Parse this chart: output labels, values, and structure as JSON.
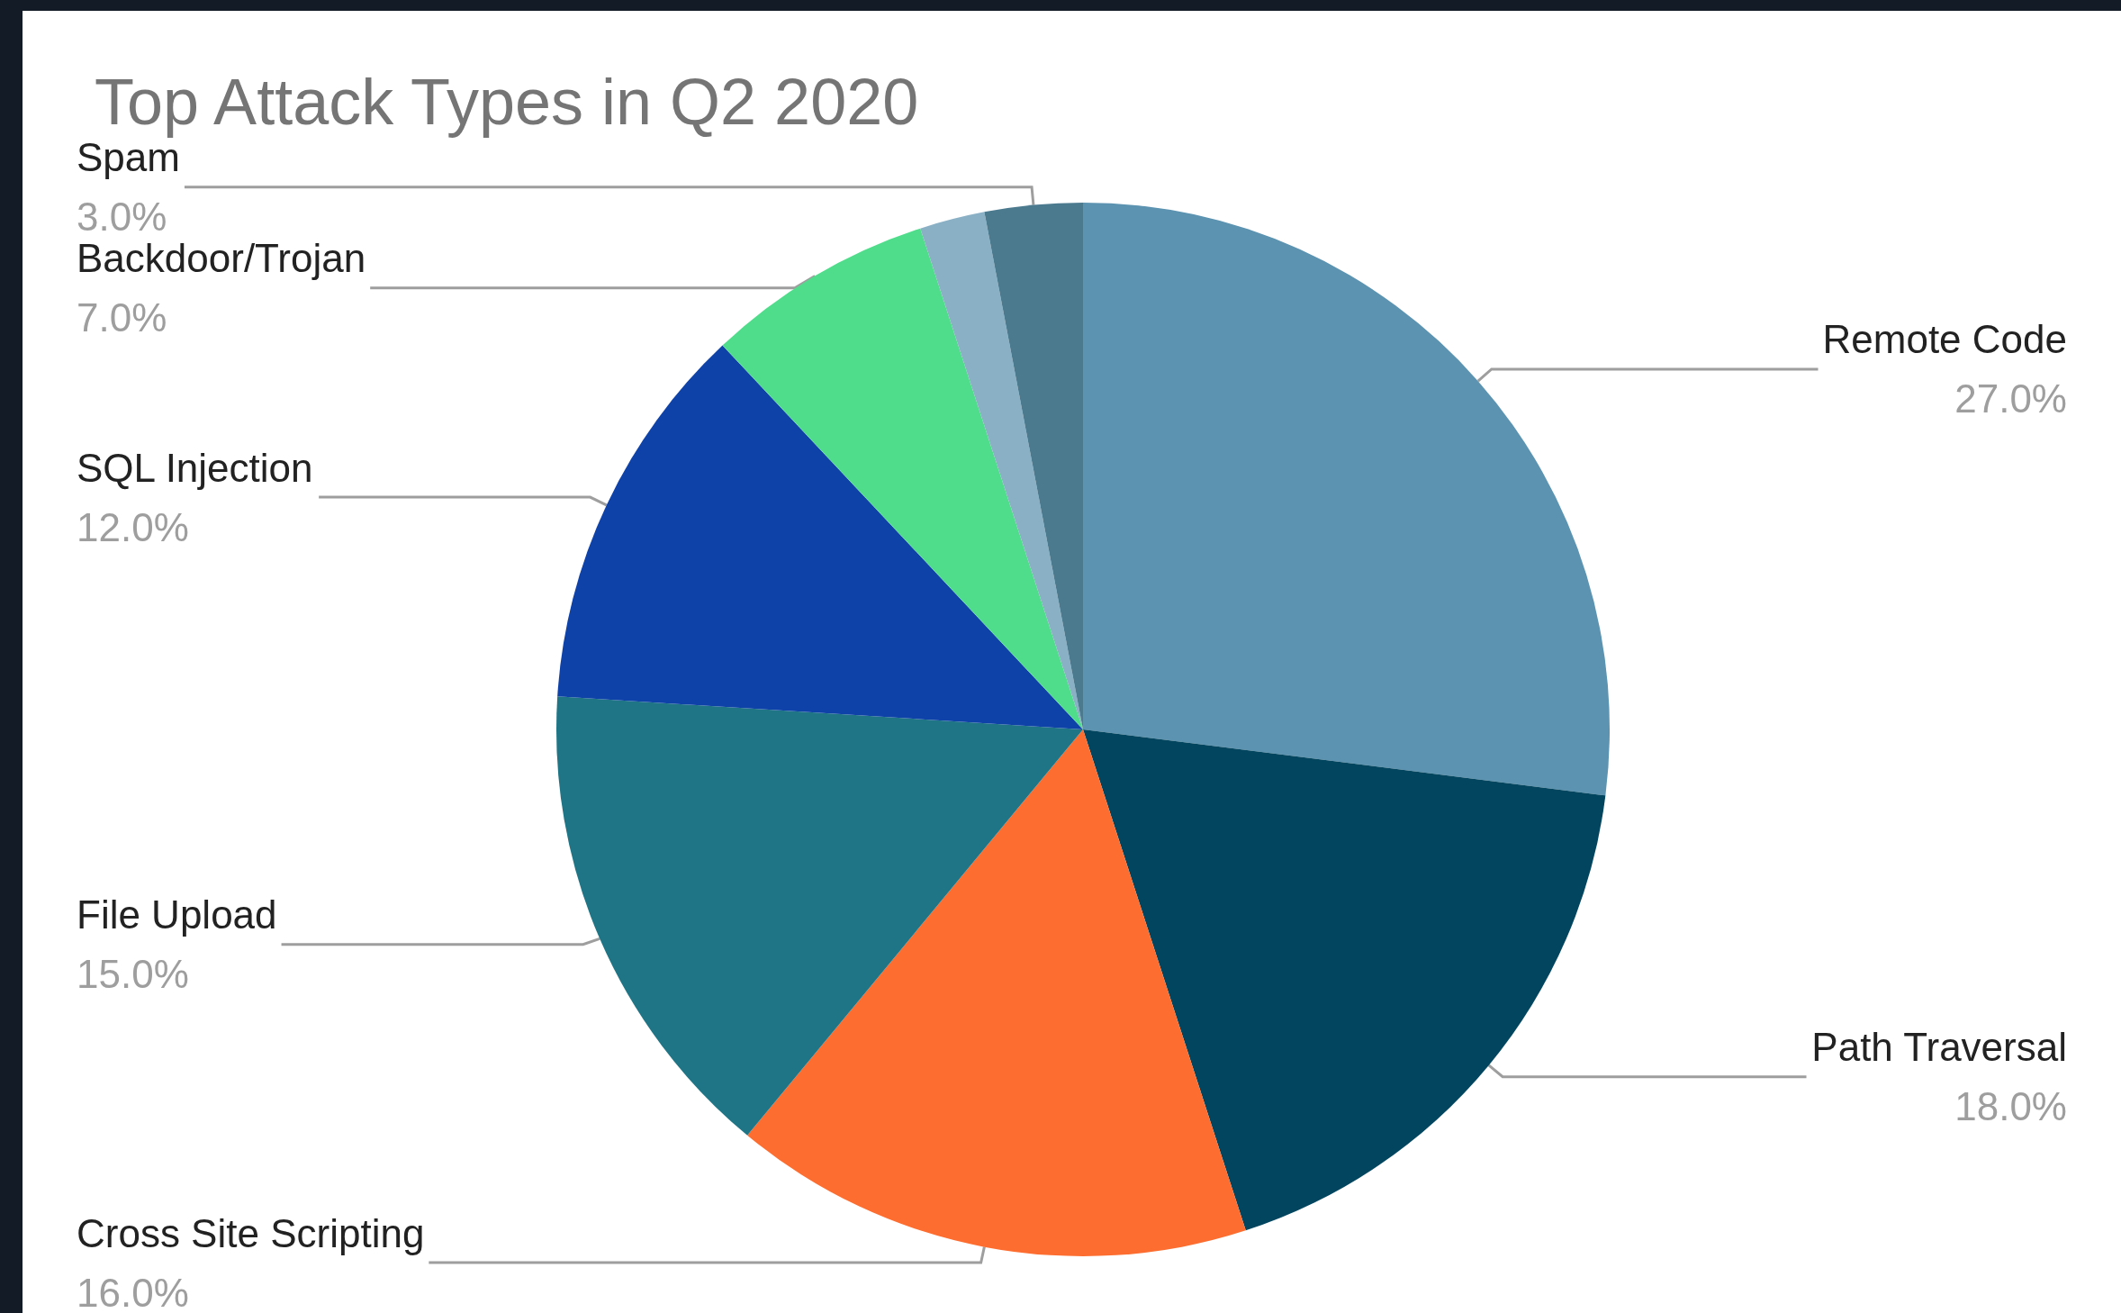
{
  "chart_data": {
    "type": "pie",
    "title": "Top Attack Types in Q2 2020",
    "categories": [
      "Remote Code",
      "Path Traversal",
      "Cross Site Scripting",
      "File Upload",
      "SQL Injection",
      "Backdoor/Trojan",
      null,
      "Spam"
    ],
    "values": [
      27,
      18,
      16,
      15,
      12,
      7,
      2,
      3
    ],
    "value_labels": [
      "27.0%",
      "18.0%",
      "16.0%",
      "15.0%",
      "12.0%",
      "7.0%",
      null,
      "3.0%"
    ],
    "colors": [
      "#5b93b0",
      "#02455f",
      "#fd6d2f",
      "#1f7585",
      "#0f42a8",
      "#50dd8b",
      "#8ab0c6",
      "#4b7a8f"
    ],
    "legend": false
  }
}
